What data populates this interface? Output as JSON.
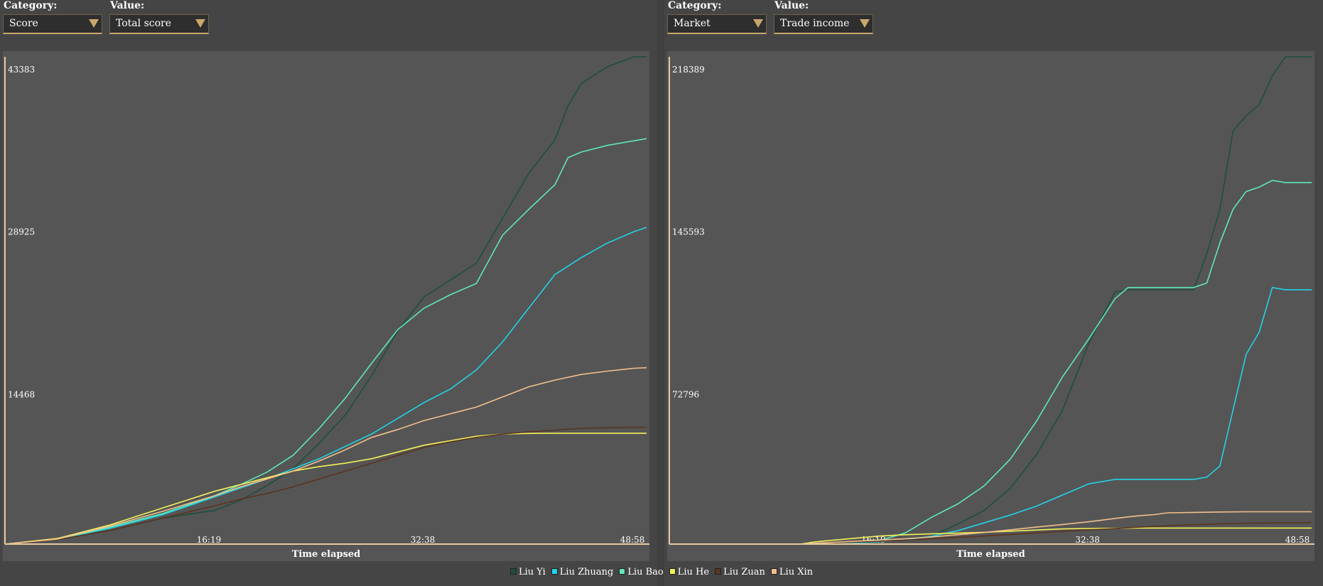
{
  "left_controls": {
    "category_label": "Category:",
    "category_value": "Score",
    "value_label": "Value:",
    "value_value": "Total score"
  },
  "right_controls": {
    "category_label": "Category:",
    "category_value": "Market",
    "value_label": "Value:",
    "value_value": "Trade income"
  },
  "legend": [
    {
      "name": "Liu Yi",
      "color": "#1c4f3e"
    },
    {
      "name": "Liu Zhuang",
      "color": "#22d3e8"
    },
    {
      "name": "Liu Bao",
      "color": "#5de8b8"
    },
    {
      "name": "Liu He",
      "color": "#f2f25a"
    },
    {
      "name": "Liu Zuan",
      "color": "#5a3420"
    },
    {
      "name": "Liu Xin",
      "color": "#f2bf8c"
    }
  ],
  "chart_data": [
    {
      "type": "line",
      "xlabel": "Time elapsed",
      "ylabel": "",
      "x_ticks": [
        "16:19",
        "32:38",
        "48:58"
      ],
      "y_ticks": [
        "14468",
        "28925",
        "43383"
      ],
      "xlim": [
        0,
        49.0
      ],
      "ylim": [
        0,
        43383
      ],
      "series": [
        {
          "name": "Liu Yi",
          "color": "#1c4f3e",
          "x": [
            0,
            4,
            8,
            12,
            16,
            18,
            20,
            22,
            24,
            26,
            28,
            30,
            32,
            34,
            36,
            38,
            40,
            42,
            43,
            44,
            46,
            48,
            49
          ],
          "y": [
            0,
            400,
            1200,
            2300,
            3000,
            3900,
            5200,
            6700,
            9000,
            11500,
            15000,
            19000,
            22000,
            23500,
            25000,
            29000,
            33000,
            36000,
            39000,
            41000,
            42500,
            43383,
            43383
          ]
        },
        {
          "name": "Liu Zhuang",
          "color": "#22d3e8",
          "x": [
            0,
            4,
            8,
            12,
            16,
            20,
            24,
            28,
            32,
            34,
            36,
            38,
            40,
            42,
            44,
            46,
            48,
            49
          ],
          "y": [
            0,
            450,
            1400,
            2600,
            4200,
            5800,
            7600,
            9800,
            12600,
            13800,
            15500,
            18000,
            21000,
            24000,
            25500,
            26800,
            27800,
            28200
          ]
        },
        {
          "name": "Liu Bao",
          "color": "#5de8b8",
          "x": [
            0,
            4,
            8,
            12,
            16,
            18,
            20,
            22,
            24,
            26,
            28,
            30,
            32,
            34,
            36,
            38,
            40,
            42,
            43,
            44,
            46,
            48,
            49
          ],
          "y": [
            0,
            450,
            1500,
            2700,
            4300,
            5300,
            6400,
            7900,
            10300,
            13000,
            16100,
            19100,
            21000,
            22200,
            23200,
            27500,
            29800,
            32000,
            34400,
            34900,
            35500,
            35900,
            36100
          ]
        },
        {
          "name": "Liu He",
          "color": "#f2f25a",
          "x": [
            0,
            4,
            8,
            12,
            16,
            18,
            20,
            22,
            24,
            26,
            28,
            30,
            32,
            34,
            36,
            38,
            40,
            42,
            44,
            46,
            48,
            49
          ],
          "y": [
            0,
            500,
            1700,
            3200,
            4700,
            5300,
            5900,
            6500,
            6900,
            7200,
            7600,
            8200,
            8800,
            9200,
            9600,
            9800,
            9850,
            9870,
            9870,
            9870,
            9870,
            9870
          ]
        },
        {
          "name": "Liu Zuan",
          "color": "#5a3420",
          "x": [
            0,
            4,
            8,
            12,
            16,
            18,
            20,
            22,
            24,
            26,
            28,
            30,
            32,
            34,
            36,
            38,
            40,
            42,
            44,
            46,
            48,
            49
          ],
          "y": [
            0,
            400,
            1200,
            2300,
            3400,
            4000,
            4500,
            5100,
            5800,
            6500,
            7200,
            7900,
            8600,
            9100,
            9500,
            9800,
            10000,
            10150,
            10300,
            10350,
            10400,
            10400
          ]
        },
        {
          "name": "Liu Xin",
          "color": "#f2bf8c",
          "x": [
            0,
            4,
            8,
            12,
            16,
            18,
            20,
            22,
            24,
            26,
            28,
            30,
            32,
            34,
            36,
            38,
            40,
            42,
            44,
            46,
            48,
            49
          ],
          "y": [
            0,
            450,
            1600,
            2900,
            4300,
            5100,
            5800,
            6500,
            7400,
            8400,
            9500,
            10200,
            11000,
            11600,
            12200,
            13100,
            14000,
            14600,
            15100,
            15400,
            15650,
            15700
          ]
        }
      ]
    },
    {
      "type": "line",
      "xlabel": "Time elapsed",
      "ylabel": "",
      "x_ticks": [
        "16:19",
        "32:38",
        "48:58"
      ],
      "y_ticks": [
        "72796",
        "145593",
        "218389"
      ],
      "xlim": [
        0,
        49.0
      ],
      "ylim": [
        0,
        218389
      ],
      "series": [
        {
          "name": "Liu Yi",
          "color": "#1c4f3e",
          "x": [
            0,
            10,
            12,
            16,
            20,
            22,
            24,
            26,
            28,
            30,
            32,
            34,
            35,
            36,
            37,
            38,
            40,
            41,
            42,
            43,
            44,
            45,
            46,
            47,
            49
          ],
          "y": [
            0,
            0,
            0,
            1000,
            3500,
            9000,
            15000,
            25000,
            40000,
            60000,
            90000,
            113000,
            114000,
            114000,
            114000,
            114000,
            114000,
            130000,
            150000,
            185000,
            192000,
            197000,
            210000,
            218389,
            218389
          ]
        },
        {
          "name": "Liu Zhuang",
          "color": "#22d3e8",
          "x": [
            0,
            10,
            12,
            16,
            18,
            20,
            22,
            24,
            26,
            28,
            30,
            32,
            34,
            35,
            36,
            37,
            38,
            39,
            40,
            41,
            42,
            43,
            44,
            45,
            46,
            47,
            49
          ],
          "y": [
            0,
            0,
            0,
            1000,
            2000,
            3500,
            6000,
            9500,
            13000,
            17000,
            22000,
            27000,
            29000,
            29000,
            29000,
            29000,
            29000,
            29000,
            29000,
            30000,
            35000,
            60000,
            85000,
            95000,
            115000,
            114000,
            114000
          ]
        },
        {
          "name": "Liu Bao",
          "color": "#5de8b8",
          "x": [
            0,
            10,
            12,
            16,
            18,
            20,
            22,
            24,
            26,
            28,
            30,
            32,
            34,
            35,
            36,
            38,
            40,
            41,
            42,
            43,
            44,
            45,
            46,
            47,
            49
          ],
          "y": [
            0,
            0,
            0,
            1500,
            5000,
            12000,
            18000,
            26000,
            38000,
            55000,
            75000,
            92000,
            110000,
            115000,
            115000,
            115000,
            115000,
            117000,
            135000,
            150000,
            158000,
            160000,
            163000,
            162000,
            162000
          ]
        },
        {
          "name": "Liu He",
          "color": "#f2f25a",
          "x": [
            0,
            10,
            11,
            12,
            14,
            16,
            18,
            20,
            22,
            24,
            26,
            28,
            30,
            32,
            34,
            36,
            38,
            40,
            42,
            44,
            46,
            48,
            49
          ],
          "y": [
            0,
            0,
            900,
            1500,
            2500,
            3600,
            4200,
            4600,
            4900,
            5300,
            5800,
            6300,
            6800,
            7000,
            7100,
            7200,
            7200,
            7200,
            7200,
            7200,
            7200,
            7200,
            7200
          ]
        },
        {
          "name": "Liu Zuan",
          "color": "#5a3420",
          "x": [
            0,
            10,
            12,
            14,
            16,
            18,
            20,
            22,
            24,
            26,
            28,
            30,
            32,
            34,
            36,
            38,
            40,
            42,
            44,
            46,
            48,
            49
          ],
          "y": [
            0,
            0,
            400,
            800,
            1200,
            1800,
            2400,
            3000,
            3600,
            4300,
            5000,
            5700,
            6400,
            7000,
            7600,
            8200,
            8700,
            9100,
            9400,
            9500,
            9600,
            9600
          ]
        },
        {
          "name": "Liu Xin",
          "color": "#f2bf8c",
          "x": [
            0,
            10,
            12,
            14,
            16,
            18,
            20,
            22,
            24,
            26,
            28,
            30,
            32,
            34,
            35,
            36,
            37,
            38,
            40,
            42,
            44,
            46,
            48,
            49
          ],
          "y": [
            0,
            0,
            600,
            1200,
            1800,
            2400,
            3200,
            4200,
            5200,
            6400,
            7600,
            8800,
            10000,
            11500,
            12200,
            12800,
            13200,
            14000,
            14200,
            14400,
            14500,
            14500,
            14500,
            14500
          ]
        }
      ]
    }
  ]
}
